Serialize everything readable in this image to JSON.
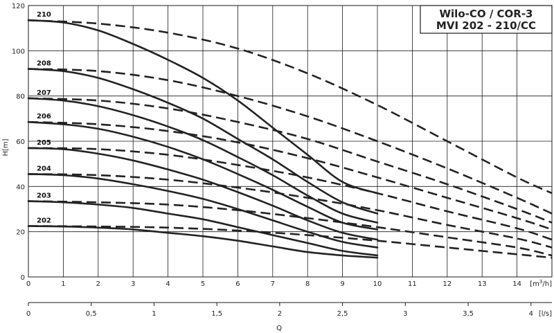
{
  "chart_data": {
    "type": "line",
    "title": [
      "Wilo-CO / COR-3",
      "MVI 202 - 210/CC"
    ],
    "ylabel": "H[m]",
    "xlabel": "Q",
    "x_unit_top": "[m³/h]",
    "x_unit_bottom": "[l/s]",
    "xlim": [
      0,
      15
    ],
    "ylim": [
      0,
      120
    ],
    "x_ticks": [
      "0",
      "1",
      "2",
      "3",
      "4",
      "5",
      "6",
      "7",
      "8",
      "9",
      "10",
      "11",
      "12",
      "13",
      "14"
    ],
    "y_ticks": [
      "0",
      "20",
      "40",
      "60",
      "80",
      "100",
      "120"
    ],
    "x2_ticks": [
      "0",
      "0,5",
      "1",
      "1,5",
      "2",
      "2,5",
      "3",
      "3,5",
      "4"
    ],
    "x2_tick_values_m3h": [
      0,
      1.8,
      3.6,
      5.4,
      7.2,
      9.0,
      10.8,
      12.6,
      14.4
    ],
    "grid": true,
    "series": [
      {
        "name": "210",
        "solid": {
          "x": [
            0,
            1,
            2,
            3,
            4,
            5,
            6,
            7,
            8,
            9,
            10
          ],
          "y": [
            113.5,
            112.5,
            109,
            103,
            96,
            88,
            78,
            66,
            54,
            42,
            37
          ]
        },
        "dashed": {
          "x": [
            0,
            2,
            4,
            6,
            8,
            10,
            12,
            14,
            15
          ],
          "y": [
            113.5,
            112,
            108,
            101,
            90,
            76,
            60,
            44,
            37
          ]
        }
      },
      {
        "name": "208",
        "solid": {
          "x": [
            0,
            1,
            2,
            3,
            4,
            5,
            6,
            7,
            8,
            9,
            10
          ],
          "y": [
            92,
            91,
            88,
            83,
            77,
            70,
            61,
            52,
            42,
            33,
            28
          ]
        },
        "dashed": {
          "x": [
            0,
            2,
            4,
            6,
            8,
            10,
            12,
            14,
            15
          ],
          "y": [
            92,
            91,
            87,
            80,
            71,
            60,
            48,
            35,
            28
          ]
        }
      },
      {
        "name": "207",
        "solid": {
          "x": [
            0,
            1,
            2,
            3,
            4,
            5,
            6,
            7,
            8,
            9,
            10
          ],
          "y": [
            79,
            78,
            75.5,
            71.5,
            66.5,
            60.5,
            53,
            45,
            36,
            28,
            24
          ]
        },
        "dashed": {
          "x": [
            0,
            2,
            4,
            6,
            8,
            10,
            12,
            14,
            15
          ],
          "y": [
            79,
            78,
            74.5,
            68.5,
            61,
            51,
            41,
            30,
            24
          ]
        }
      },
      {
        "name": "206",
        "solid": {
          "x": [
            0,
            1,
            2,
            3,
            4,
            5,
            6,
            7,
            8,
            9,
            10
          ],
          "y": [
            68.5,
            67.5,
            65.5,
            62,
            57.5,
            52,
            45.5,
            38.5,
            31,
            24,
            21
          ]
        },
        "dashed": {
          "x": [
            0,
            2,
            4,
            6,
            8,
            10,
            12,
            14,
            15
          ],
          "y": [
            68.5,
            67.5,
            64.5,
            59.5,
            52.5,
            44,
            35,
            26,
            21
          ]
        }
      },
      {
        "name": "205",
        "solid": {
          "x": [
            0,
            1,
            2,
            3,
            4,
            5,
            6,
            7,
            8,
            9,
            10
          ],
          "y": [
            57,
            56.5,
            54.5,
            51.5,
            47.5,
            43,
            37.5,
            31.5,
            25,
            19.5,
            16.5
          ]
        },
        "dashed": {
          "x": [
            0,
            2,
            4,
            6,
            8,
            10,
            12,
            14,
            15
          ],
          "y": [
            57,
            56.5,
            54,
            49.5,
            44,
            37,
            29,
            21.5,
            16.5
          ]
        }
      },
      {
        "name": "204",
        "solid": {
          "x": [
            0,
            1,
            2,
            3,
            4,
            5,
            6,
            7,
            8,
            9,
            10
          ],
          "y": [
            45.5,
            45,
            43.5,
            41,
            38,
            34.5,
            30,
            25,
            20,
            15.5,
            13
          ]
        },
        "dashed": {
          "x": [
            0,
            2,
            4,
            6,
            8,
            10,
            12,
            14,
            15
          ],
          "y": [
            45.5,
            45,
            43,
            39.5,
            35,
            29.5,
            23,
            17,
            13
          ]
        }
      },
      {
        "name": "203",
        "solid": {
          "x": [
            0,
            1,
            2,
            3,
            4,
            5,
            6,
            7,
            8,
            9,
            10
          ],
          "y": [
            33.5,
            33,
            32,
            30.5,
            28,
            25.5,
            22,
            18.5,
            15,
            11.5,
            9.5
          ]
        },
        "dashed": {
          "x": [
            0,
            2,
            4,
            6,
            8,
            10,
            12,
            14,
            15
          ],
          "y": [
            33.5,
            33,
            32,
            29.5,
            26,
            22,
            17.5,
            13,
            9.5
          ]
        }
      },
      {
        "name": "202",
        "solid": {
          "x": [
            0,
            1,
            2,
            3,
            4,
            5,
            6,
            7,
            8,
            9,
            10
          ],
          "y": [
            22.5,
            22.3,
            21.8,
            21,
            19.5,
            18,
            16,
            13.5,
            11,
            9.5,
            8.5
          ]
        },
        "dashed": {
          "x": [
            0,
            2,
            4,
            6,
            8,
            10,
            12,
            14,
            15
          ],
          "y": [
            22.5,
            22.3,
            21.8,
            20.5,
            18.5,
            16,
            13,
            10,
            8.5
          ]
        }
      }
    ]
  }
}
